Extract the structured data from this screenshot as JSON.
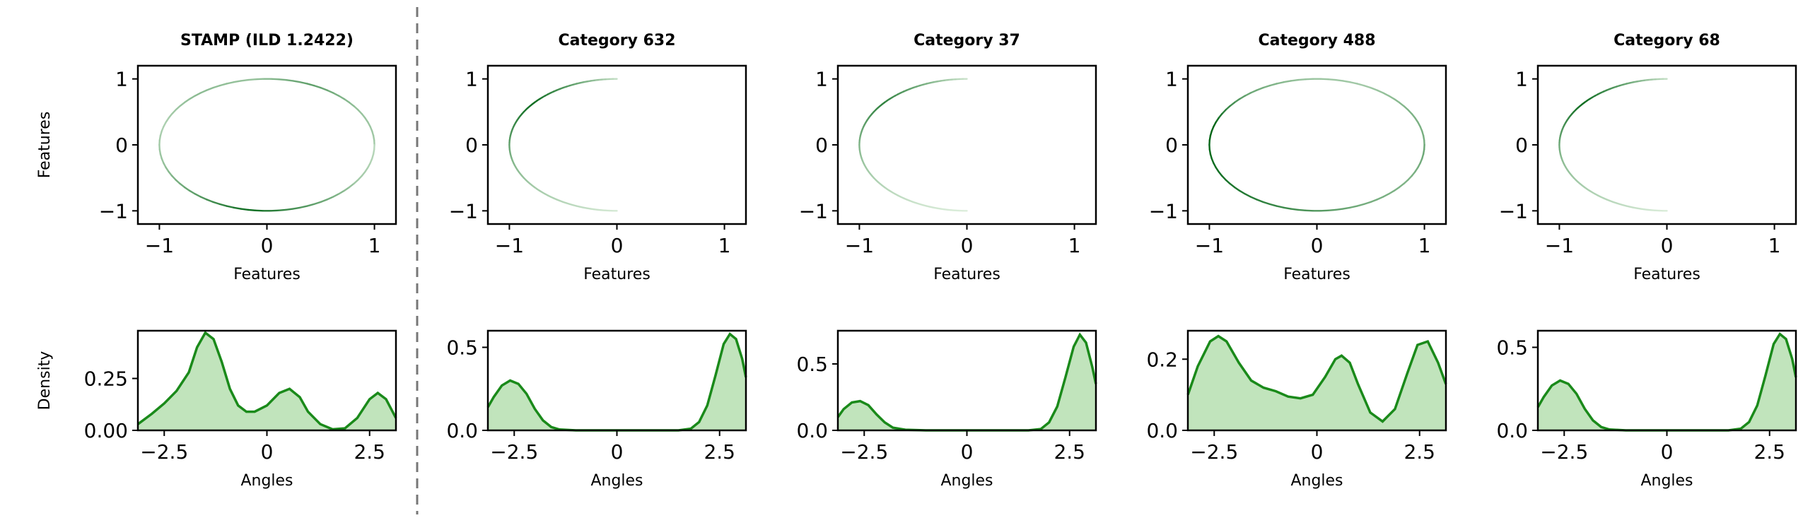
{
  "figure": {
    "accent_color": "#1a8a1a",
    "fill_color": "#a6d8a0",
    "divider_color": "#777777"
  },
  "chart_data": [
    {
      "panel": "circle",
      "type": "scatter",
      "title": "STAMP (ILD 1.2422)",
      "xlabel": "Features",
      "ylabel": "Features",
      "xlim": [
        -1.2,
        1.2
      ],
      "ylim": [
        -1.2,
        1.2
      ],
      "xticks": [
        -1,
        0,
        1
      ],
      "yticks": [
        -1,
        0,
        1
      ],
      "arcs": [
        {
          "from_deg": 0,
          "to_deg": 360,
          "intensity": [
            0.3,
            0.35,
            0.6,
            0.35,
            0.4,
            0.25,
            0.35,
            0.6,
            0.95,
            0.6,
            0.3,
            0.2
          ]
        }
      ]
    },
    {
      "panel": "density",
      "type": "area",
      "xlabel": "Angles",
      "ylabel": "Density",
      "xlim": [
        -3.1416,
        3.1416
      ],
      "ylim": [
        0,
        0.48
      ],
      "xticks": [
        -2.5,
        0.0,
        2.5
      ],
      "yticks": [
        0.0,
        0.25
      ],
      "ytick_labels": [
        "0.00",
        "0.25"
      ],
      "x": [
        -3.14,
        -2.8,
        -2.5,
        -2.2,
        -1.9,
        -1.7,
        -1.5,
        -1.3,
        -1.1,
        -0.9,
        -0.7,
        -0.5,
        -0.3,
        0.0,
        0.3,
        0.55,
        0.8,
        1.0,
        1.3,
        1.6,
        1.9,
        2.2,
        2.5,
        2.7,
        2.9,
        3.14
      ],
      "y": [
        0.03,
        0.08,
        0.13,
        0.19,
        0.28,
        0.4,
        0.47,
        0.44,
        0.33,
        0.2,
        0.12,
        0.09,
        0.09,
        0.12,
        0.18,
        0.2,
        0.16,
        0.09,
        0.03,
        0.005,
        0.01,
        0.06,
        0.15,
        0.18,
        0.15,
        0.06
      ]
    },
    {
      "panel": "circle",
      "type": "scatter",
      "title": "Category 632",
      "xlabel": "Features",
      "xlim": [
        -1.2,
        1.2
      ],
      "ylim": [
        -1.2,
        1.2
      ],
      "xticks": [
        -1,
        0,
        1
      ],
      "yticks": [
        -1,
        0,
        1
      ],
      "arcs": [
        {
          "from_deg": 90,
          "to_deg": 270,
          "intensity": [
            0.15,
            0.6,
            0.95,
            0.7,
            0.45,
            0.3,
            0.2,
            0.08
          ]
        }
      ]
    },
    {
      "panel": "density",
      "type": "area",
      "xlabel": "Angles",
      "xlim": [
        -3.1416,
        3.1416
      ],
      "ylim": [
        0,
        0.6
      ],
      "xticks": [
        -2.5,
        0.0,
        2.5
      ],
      "yticks": [
        0.0,
        0.5
      ],
      "ytick_labels": [
        "0.0",
        "0.5"
      ],
      "x": [
        -3.14,
        -3.0,
        -2.8,
        -2.6,
        -2.4,
        -2.2,
        -2.0,
        -1.8,
        -1.6,
        -1.4,
        -1.0,
        0.0,
        1.0,
        1.5,
        1.8,
        2.0,
        2.2,
        2.4,
        2.6,
        2.75,
        2.9,
        3.05,
        3.14
      ],
      "y": [
        0.14,
        0.2,
        0.27,
        0.3,
        0.28,
        0.22,
        0.13,
        0.06,
        0.02,
        0.005,
        0.0,
        0.0,
        0.0,
        0.0,
        0.01,
        0.05,
        0.15,
        0.33,
        0.52,
        0.58,
        0.55,
        0.43,
        0.32
      ]
    },
    {
      "panel": "circle",
      "type": "scatter",
      "title": "Category 37",
      "xlabel": "Features",
      "xlim": [
        -1.2,
        1.2
      ],
      "ylim": [
        -1.2,
        1.2
      ],
      "xticks": [
        -1,
        0,
        1
      ],
      "yticks": [
        -1,
        0,
        1
      ],
      "arcs": [
        {
          "from_deg": 90,
          "to_deg": 270,
          "intensity": [
            0.12,
            0.5,
            0.8,
            0.55,
            0.35,
            0.22,
            0.12,
            0.05
          ]
        }
      ]
    },
    {
      "panel": "density",
      "type": "area",
      "xlabel": "Angles",
      "xlim": [
        -3.1416,
        3.1416
      ],
      "ylim": [
        0,
        0.75
      ],
      "xticks": [
        -2.5,
        0.0,
        2.5
      ],
      "yticks": [
        0.0,
        0.5
      ],
      "ytick_labels": [
        "0.0",
        "0.5"
      ],
      "x": [
        -3.14,
        -3.0,
        -2.8,
        -2.6,
        -2.4,
        -2.2,
        -2.0,
        -1.8,
        -1.5,
        -1.0,
        0.0,
        1.0,
        1.5,
        1.8,
        2.0,
        2.2,
        2.4,
        2.6,
        2.75,
        2.9,
        3.05,
        3.14
      ],
      "y": [
        0.1,
        0.16,
        0.21,
        0.22,
        0.19,
        0.12,
        0.06,
        0.02,
        0.005,
        0.0,
        0.0,
        0.0,
        0.0,
        0.01,
        0.06,
        0.18,
        0.4,
        0.63,
        0.72,
        0.66,
        0.48,
        0.35
      ]
    },
    {
      "panel": "circle",
      "type": "scatter",
      "title": "Category 488",
      "xlabel": "Features",
      "xlim": [
        -1.2,
        1.2
      ],
      "ylim": [
        -1.2,
        1.2
      ],
      "xticks": [
        -1,
        0,
        1
      ],
      "yticks": [
        -1,
        0,
        1
      ],
      "arcs": [
        {
          "from_deg": 0,
          "to_deg": 360,
          "intensity": [
            0.5,
            0.45,
            0.3,
            0.35,
            0.55,
            1.0,
            0.95,
            0.85,
            0.7,
            0.5,
            0.45,
            0.55
          ]
        }
      ]
    },
    {
      "panel": "density",
      "type": "area",
      "xlabel": "Angles",
      "xlim": [
        -3.1416,
        3.1416
      ],
      "ylim": [
        0,
        0.28
      ],
      "xticks": [
        -2.5,
        0.0,
        2.5
      ],
      "yticks": [
        0.0,
        0.2
      ],
      "ytick_labels": [
        "0.0",
        "0.2"
      ],
      "x": [
        -3.14,
        -2.9,
        -2.6,
        -2.4,
        -2.2,
        -1.9,
        -1.6,
        -1.3,
        -1.0,
        -0.7,
        -0.4,
        -0.1,
        0.2,
        0.45,
        0.6,
        0.8,
        1.0,
        1.3,
        1.6,
        1.9,
        2.2,
        2.45,
        2.7,
        2.95,
        3.14
      ],
      "y": [
        0.1,
        0.18,
        0.25,
        0.265,
        0.25,
        0.19,
        0.14,
        0.12,
        0.11,
        0.095,
        0.09,
        0.1,
        0.15,
        0.2,
        0.21,
        0.19,
        0.13,
        0.05,
        0.025,
        0.06,
        0.16,
        0.24,
        0.25,
        0.19,
        0.13
      ]
    },
    {
      "panel": "circle",
      "type": "scatter",
      "title": "Category 68",
      "xlabel": "Features",
      "xlim": [
        -1.2,
        1.2
      ],
      "ylim": [
        -1.2,
        1.2
      ],
      "xticks": [
        -1,
        0,
        1
      ],
      "yticks": [
        -1,
        0,
        1
      ],
      "arcs": [
        {
          "from_deg": 90,
          "to_deg": 270,
          "intensity": [
            0.15,
            0.6,
            0.95,
            0.65,
            0.4,
            0.28,
            0.18,
            0.06
          ]
        }
      ]
    },
    {
      "panel": "density",
      "type": "area",
      "xlabel": "Angles",
      "xlim": [
        -3.1416,
        3.1416
      ],
      "ylim": [
        0,
        0.6
      ],
      "xticks": [
        -2.5,
        0.0,
        2.5
      ],
      "yticks": [
        0.0,
        0.5
      ],
      "ytick_labels": [
        "0.0",
        "0.5"
      ],
      "x": [
        -3.14,
        -3.0,
        -2.8,
        -2.6,
        -2.4,
        -2.2,
        -2.0,
        -1.8,
        -1.6,
        -1.4,
        -1.0,
        0.0,
        1.0,
        1.5,
        1.8,
        2.0,
        2.2,
        2.4,
        2.6,
        2.75,
        2.9,
        3.05,
        3.14
      ],
      "y": [
        0.14,
        0.2,
        0.27,
        0.3,
        0.28,
        0.22,
        0.13,
        0.06,
        0.02,
        0.005,
        0.0,
        0.0,
        0.0,
        0.0,
        0.01,
        0.05,
        0.15,
        0.33,
        0.52,
        0.58,
        0.55,
        0.43,
        0.32
      ]
    }
  ]
}
